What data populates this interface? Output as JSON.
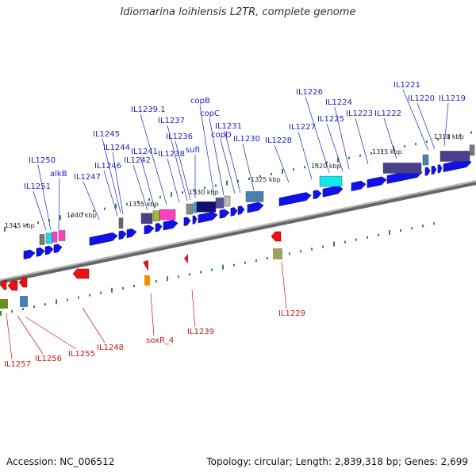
{
  "title": "Idiomarina loihiensis L2TR, complete genome",
  "footer": {
    "accession": "Accession: NC_006512",
    "topology": "Topology: circular; Length: 2,839,318 bp; Genes: 2,699"
  },
  "colors": {
    "forward_gene": "#1010e8",
    "reverse_gene": "#e81010",
    "forward_label": "#1d22c8",
    "reverse_label": "#c81818",
    "backbone": "#888888",
    "tick": "#2e8b2e"
  },
  "scale_labels": [
    "1345 kbp",
    "1340 kbp",
    "1335 kbp",
    "1330 kbp",
    "1325 kbp",
    "1320 kbp",
    "1315 kbp",
    "1310 kbp"
  ],
  "forward_labels": [
    "IL1251",
    "IL1250",
    "alkB",
    "IL1247",
    "IL1246",
    "IL1244",
    "IL1245",
    "IL1242",
    "IL1241",
    "IL1239.1",
    "IL1238",
    "IL1237",
    "IL1236",
    "sufI",
    "copB",
    "copC",
    "copD",
    "IL1231",
    "IL1230",
    "IL1228",
    "IL1227",
    "IL1226",
    "IL1225",
    "IL1224",
    "IL1223",
    "IL1222",
    "IL1221",
    "IL1220",
    "IL1219"
  ],
  "reverse_labels": [
    "IL1257",
    "IL1256",
    "IL1255",
    "IL1248",
    "soxR_4",
    "IL1239",
    "IL1229"
  ]
}
